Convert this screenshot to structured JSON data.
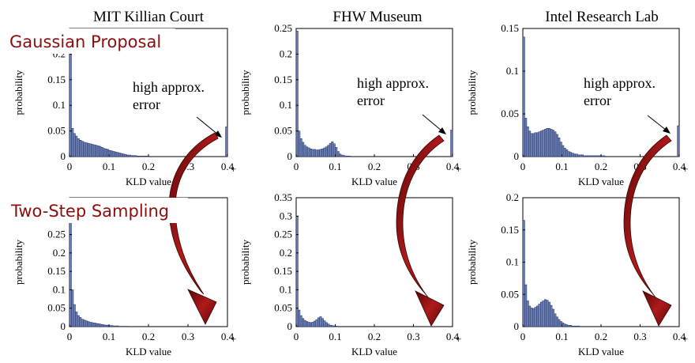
{
  "colors": {
    "bar_fill": "#6f82b3",
    "bar_stroke": "#1c2c66",
    "row_label": "#8b0d0d",
    "arrow_fill": "#8b0d0d"
  },
  "column_titles": [
    "MIT Killian Court",
    "FHW Museum",
    "Intel Research Lab"
  ],
  "row_labels": [
    "Gaussian Proposal",
    "Two-Step Sampling"
  ],
  "annotation_lines": [
    "high approx.",
    "error"
  ],
  "xlabel": "KLD value",
  "ylabel": "probability",
  "chart_data": [
    {
      "type": "bar",
      "panel": "MIT Killian Court / Gaussian Proposal",
      "xlabel": "KLD value",
      "ylabel": "probability",
      "xlim": [
        0,
        0.4
      ],
      "ylim": [
        0,
        0.25
      ],
      "xticks": [
        "0",
        "0.1",
        "0.2",
        "0.3",
        "0.4"
      ],
      "yticks": [
        "0",
        "0.05",
        "0.1",
        "0.15",
        "0.2"
      ],
      "bin_width": 0.005,
      "values": [
        0.22,
        0.055,
        0.045,
        0.04,
        0.035,
        0.032,
        0.03,
        0.028,
        0.027,
        0.026,
        0.025,
        0.024,
        0.023,
        0.022,
        0.021,
        0.02,
        0.018,
        0.016,
        0.015,
        0.014,
        0.012,
        0.011,
        0.01,
        0.009,
        0.008,
        0.007,
        0.006,
        0.005,
        0.004,
        0.003,
        0.003,
        0.002,
        0.002,
        0.002,
        0.001,
        0.001,
        0.001,
        0.001,
        0.001,
        0.001,
        0,
        0,
        0,
        0,
        0,
        0,
        0,
        0,
        0,
        0,
        0,
        0,
        0,
        0,
        0,
        0,
        0,
        0,
        0,
        0,
        0,
        0,
        0,
        0,
        0,
        0,
        0,
        0,
        0,
        0,
        0,
        0,
        0,
        0,
        0,
        0,
        0,
        0,
        0,
        0.058
      ],
      "annotation": "high approx. error"
    },
    {
      "type": "bar",
      "panel": "FHW Museum / Gaussian Proposal",
      "xlabel": "KLD value",
      "ylabel": "probability",
      "xlim": [
        0,
        0.4
      ],
      "ylim": [
        0,
        0.25
      ],
      "xticks": [
        "0",
        "0.1",
        "0.2",
        "0.3",
        "0.4"
      ],
      "yticks": [
        "0",
        "0.05",
        "0.1",
        "0.15",
        "0.2",
        "0.25"
      ],
      "bin_width": 0.005,
      "values": [
        0.245,
        0.05,
        0.035,
        0.028,
        0.022,
        0.019,
        0.017,
        0.015,
        0.014,
        0.014,
        0.013,
        0.013,
        0.014,
        0.015,
        0.017,
        0.019,
        0.022,
        0.026,
        0.029,
        0.025,
        0.018,
        0.01,
        0.005,
        0.003,
        0.002,
        0.001,
        0.001,
        0.001,
        0,
        0,
        0,
        0,
        0,
        0,
        0,
        0,
        0,
        0,
        0,
        0,
        0,
        0,
        0,
        0,
        0,
        0,
        0,
        0,
        0,
        0,
        0,
        0,
        0,
        0,
        0,
        0,
        0,
        0,
        0,
        0,
        0,
        0,
        0,
        0,
        0,
        0,
        0,
        0,
        0,
        0,
        0,
        0,
        0,
        0,
        0,
        0,
        0,
        0,
        0,
        0.052
      ],
      "annotation": "high approx. error"
    },
    {
      "type": "bar",
      "panel": "Intel Research Lab / Gaussian Proposal",
      "xlabel": "KLD value",
      "ylabel": "probability",
      "xlim": [
        0,
        0.4
      ],
      "ylim": [
        0,
        0.15
      ],
      "xticks": [
        "0",
        "0.1",
        "0.2",
        "0.3",
        "0.4"
      ],
      "yticks": [
        "0",
        "0.05",
        "0.1",
        "0.15"
      ],
      "bin_width": 0.005,
      "values": [
        0.14,
        0.045,
        0.035,
        0.03,
        0.027,
        0.027,
        0.028,
        0.028,
        0.029,
        0.03,
        0.031,
        0.032,
        0.033,
        0.033,
        0.032,
        0.031,
        0.029,
        0.026,
        0.022,
        0.017,
        0.013,
        0.01,
        0.008,
        0.006,
        0.005,
        0.004,
        0.003,
        0.003,
        0.002,
        0.002,
        0.002,
        0.001,
        0.001,
        0.001,
        0.001,
        0.001,
        0.001,
        0.001,
        0.001,
        0.001,
        0.001,
        0.001,
        0,
        0,
        0,
        0,
        0,
        0,
        0,
        0,
        0,
        0,
        0,
        0,
        0,
        0,
        0,
        0,
        0,
        0,
        0,
        0,
        0,
        0,
        0,
        0,
        0,
        0,
        0,
        0,
        0,
        0,
        0,
        0,
        0,
        0,
        0,
        0,
        0,
        0.036
      ],
      "annotation": "high approx. error"
    },
    {
      "type": "bar",
      "panel": "MIT Killian Court / Two-Step Sampling",
      "xlabel": "KLD value",
      "ylabel": "probability",
      "xlim": [
        0,
        0.4
      ],
      "ylim": [
        0,
        0.35
      ],
      "xticks": [
        "0",
        "0.1",
        "0.2",
        "0.3",
        "0.4"
      ],
      "yticks": [
        "0",
        "0.05",
        "0.1",
        "0.15",
        "0.2",
        "0.25",
        "0.3"
      ],
      "bin_width": 0.005,
      "values": [
        0.32,
        0.1,
        0.06,
        0.04,
        0.03,
        0.025,
        0.02,
        0.018,
        0.016,
        0.014,
        0.012,
        0.011,
        0.01,
        0.009,
        0.008,
        0.007,
        0.006,
        0.005,
        0.004,
        0.004,
        0.003,
        0.003,
        0.002,
        0.002,
        0.002,
        0.001,
        0.001,
        0.001,
        0.001,
        0.001,
        0,
        0,
        0,
        0,
        0,
        0,
        0,
        0,
        0,
        0,
        0,
        0,
        0,
        0,
        0,
        0,
        0,
        0,
        0,
        0,
        0,
        0,
        0,
        0,
        0,
        0,
        0,
        0,
        0,
        0,
        0,
        0,
        0,
        0,
        0,
        0,
        0,
        0,
        0,
        0,
        0,
        0,
        0,
        0,
        0,
        0,
        0,
        0,
        0,
        0
      ]
    },
    {
      "type": "bar",
      "panel": "FHW Museum / Two-Step Sampling",
      "xlabel": "KLD value",
      "ylabel": "probability",
      "xlim": [
        0,
        0.4
      ],
      "ylim": [
        0,
        0.35
      ],
      "xticks": [
        "0",
        "0.1",
        "0.2",
        "0.3",
        "0.4"
      ],
      "yticks": [
        "0",
        "0.05",
        "0.1",
        "0.15",
        "0.2",
        "0.25",
        "0.3",
        "0.35"
      ],
      "bin_width": 0.005,
      "values": [
        0.3,
        0.045,
        0.03,
        0.022,
        0.017,
        0.014,
        0.012,
        0.011,
        0.012,
        0.015,
        0.019,
        0.024,
        0.027,
        0.022,
        0.016,
        0.011,
        0.007,
        0.004,
        0.003,
        0.002,
        0.001,
        0.001,
        0,
        0,
        0,
        0,
        0,
        0,
        0,
        0,
        0,
        0,
        0,
        0,
        0,
        0,
        0,
        0,
        0,
        0,
        0,
        0,
        0,
        0,
        0,
        0,
        0,
        0,
        0,
        0,
        0,
        0,
        0,
        0,
        0,
        0,
        0,
        0,
        0,
        0,
        0,
        0,
        0,
        0,
        0,
        0,
        0,
        0,
        0,
        0,
        0,
        0,
        0,
        0,
        0,
        0,
        0,
        0,
        0,
        0
      ]
    },
    {
      "type": "bar",
      "panel": "Intel Research Lab / Two-Step Sampling",
      "xlabel": "KLD value",
      "ylabel": "probability",
      "xlim": [
        0,
        0.4
      ],
      "ylim": [
        0,
        0.2
      ],
      "xticks": [
        "0",
        "0.1",
        "0.2",
        "0.3",
        "0.4"
      ],
      "yticks": [
        "0",
        "0.05",
        "0.1",
        "0.15",
        "0.2"
      ],
      "bin_width": 0.005,
      "values": [
        0.165,
        0.065,
        0.04,
        0.032,
        0.029,
        0.028,
        0.03,
        0.032,
        0.035,
        0.038,
        0.04,
        0.042,
        0.041,
        0.038,
        0.033,
        0.027,
        0.02,
        0.015,
        0.011,
        0.008,
        0.006,
        0.004,
        0.003,
        0.002,
        0.002,
        0.001,
        0.001,
        0.001,
        0.001,
        0,
        0,
        0,
        0,
        0,
        0,
        0,
        0,
        0,
        0,
        0,
        0,
        0,
        0,
        0,
        0,
        0,
        0,
        0,
        0,
        0,
        0,
        0,
        0,
        0,
        0,
        0,
        0,
        0,
        0,
        0,
        0,
        0,
        0,
        0,
        0,
        0,
        0,
        0,
        0,
        0,
        0,
        0,
        0,
        0,
        0,
        0,
        0,
        0,
        0,
        0
      ]
    }
  ]
}
